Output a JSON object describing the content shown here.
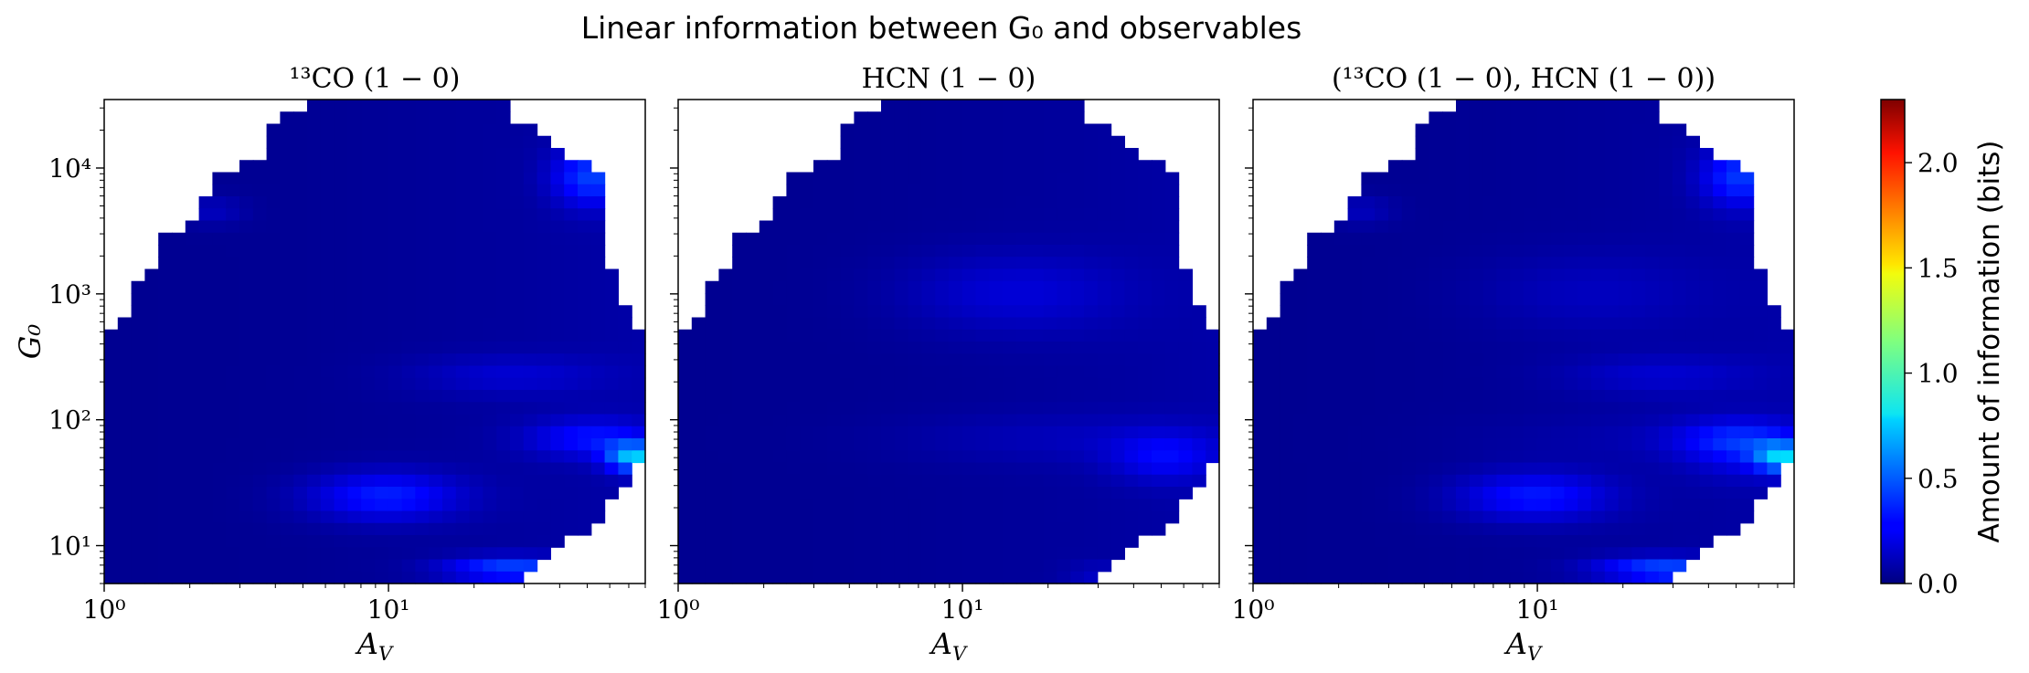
{
  "figure": {
    "suptitle": "Linear information between G₀ and observables"
  },
  "colorbar": {
    "label": "Amount of information (bits)",
    "range": [
      0.0,
      2.3
    ],
    "ticks": [
      "0.0",
      "0.5",
      "1.0",
      "1.5",
      "2.0"
    ],
    "tick_values": [
      0.0,
      0.5,
      1.0,
      1.5,
      2.0
    ],
    "colormap": "jet"
  },
  "chart_data": [
    {
      "type": "heatmap",
      "title": "¹³CO (1 − 0)",
      "xlabel": "A_V",
      "ylabel": "G₀",
      "xscale": "log",
      "yscale": "log",
      "xlim": [
        1,
        80
      ],
      "ylim": [
        5,
        35000
      ],
      "xticks": [
        "10⁰",
        "10¹"
      ],
      "yticks": [
        "10¹",
        "10²",
        "10³",
        "10⁴"
      ],
      "colorscale_max_bits": 2.3,
      "approx_max_bits": 0.78,
      "high_information_regions": [
        {
          "Av": [
            55,
            80
          ],
          "G0": [
            35,
            65
          ],
          "bits": 0.75
        },
        {
          "Av": [
            50,
            60
          ],
          "G0": [
            2500,
            6000
          ],
          "bits": 0.6
        },
        {
          "Av": [
            20,
            38
          ],
          "G0": [
            5,
            7
          ],
          "bits": 0.6
        },
        {
          "Av": [
            8,
            25
          ],
          "G0": [
            15,
            40
          ],
          "bits": 0.45
        },
        {
          "Av": [
            30,
            80
          ],
          "G0": [
            40,
            100
          ],
          "bits": 0.5
        }
      ]
    },
    {
      "type": "heatmap",
      "title": "HCN (1 − 0)",
      "xlabel": "A_V",
      "ylabel": "",
      "xscale": "log",
      "yscale": "log",
      "xlim": [
        1,
        80
      ],
      "ylim": [
        5,
        35000
      ],
      "xticks": [
        "10⁰",
        "10¹"
      ],
      "colorscale_max_bits": 2.3,
      "approx_max_bits": 0.4,
      "high_information_regions": [
        {
          "Av": [
            25,
            50
          ],
          "G0": [
            500,
            2000
          ],
          "bits": 0.3
        },
        {
          "Av": [
            30,
            80
          ],
          "G0": [
            35,
            80
          ],
          "bits": 0.35
        }
      ]
    },
    {
      "type": "heatmap",
      "title": "(¹³CO (1 − 0), HCN (1 − 0))",
      "xlabel": "A_V",
      "ylabel": "",
      "xscale": "log",
      "yscale": "log",
      "xlim": [
        1,
        80
      ],
      "ylim": [
        5,
        35000
      ],
      "xticks": [
        "10⁰",
        "10¹"
      ],
      "colorscale_max_bits": 2.3,
      "approx_max_bits": 0.78,
      "high_information_regions": [
        {
          "Av": [
            55,
            80
          ],
          "G0": [
            35,
            65
          ],
          "bits": 0.75
        },
        {
          "Av": [
            45,
            60
          ],
          "G0": [
            2500,
            6000
          ],
          "bits": 0.55
        },
        {
          "Av": [
            20,
            38
          ],
          "G0": [
            5,
            7
          ],
          "bits": 0.65
        },
        {
          "Av": [
            8,
            25
          ],
          "G0": [
            15,
            40
          ],
          "bits": 0.45
        },
        {
          "Av": [
            25,
            50
          ],
          "G0": [
            500,
            2000
          ],
          "bits": 0.35
        }
      ]
    }
  ]
}
